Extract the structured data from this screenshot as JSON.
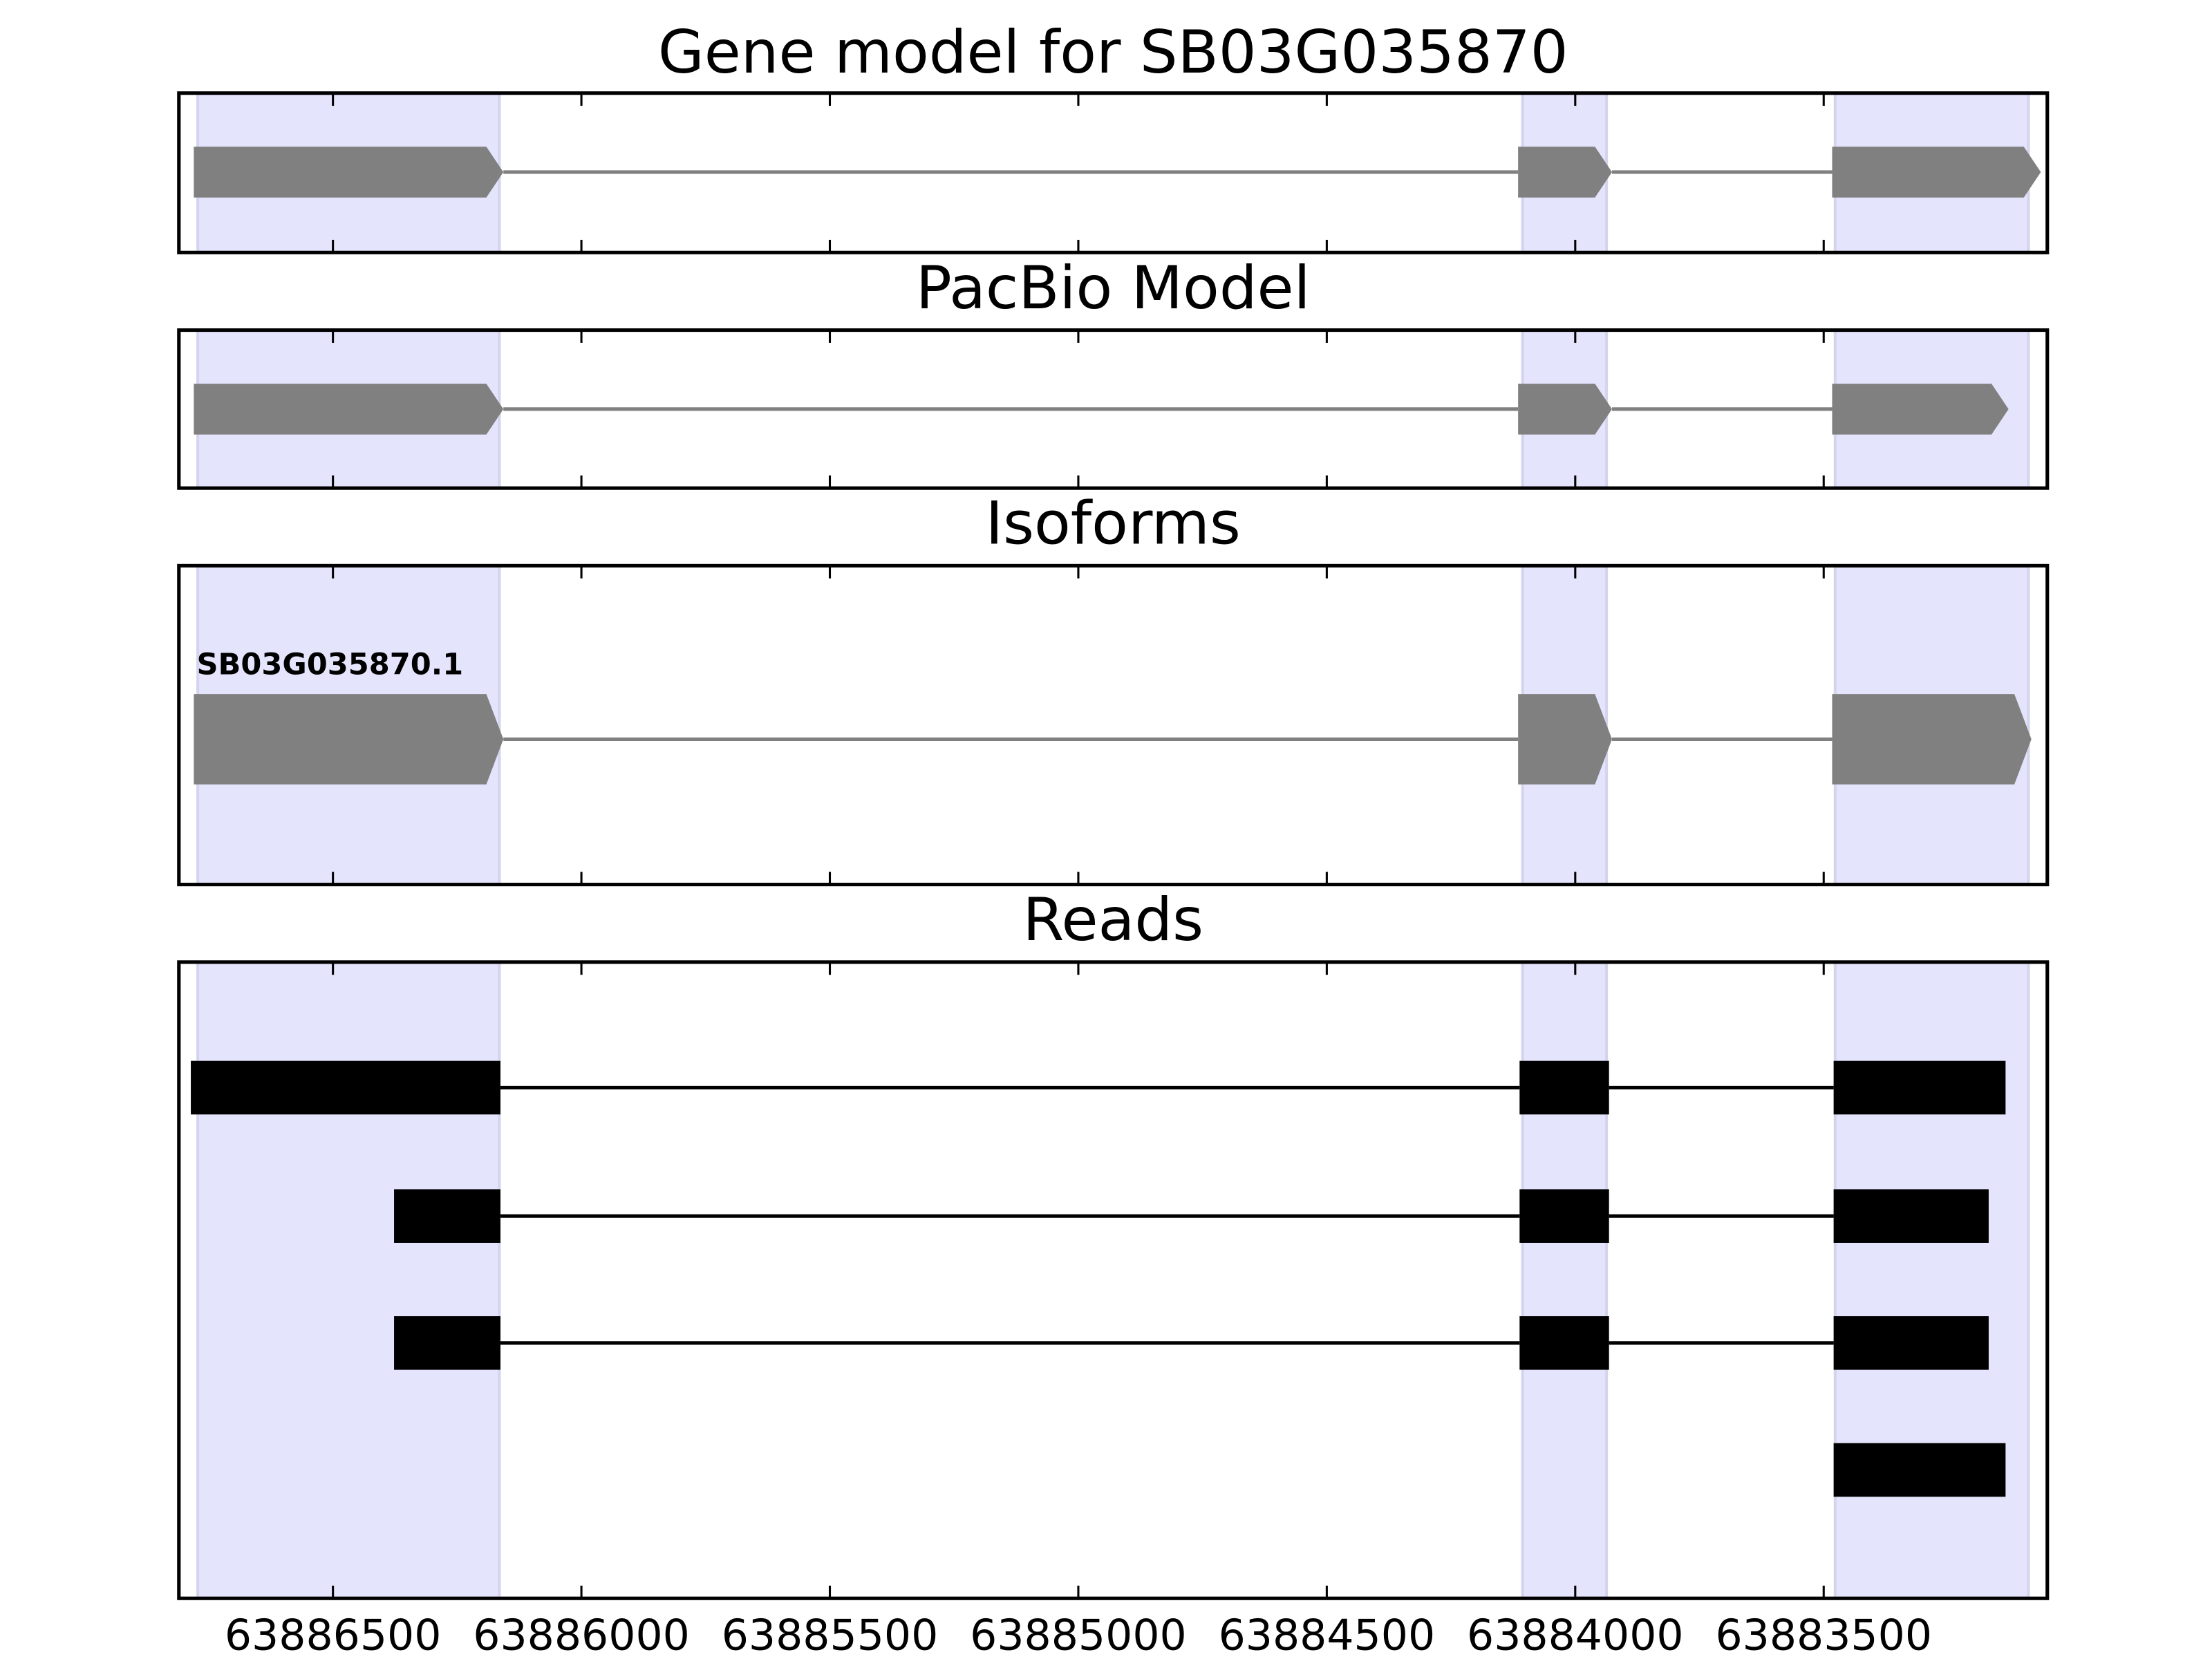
{
  "chart_data": [
    {
      "type": "gene",
      "title": "Gene model for SB03G035870",
      "color": "#808080",
      "highlight_color": "#e4e4fc",
      "xlim": [
        63886810,
        63883050
      ],
      "xticks": [
        63886500,
        63886000,
        63885500,
        63885000,
        63884500,
        63884000,
        63883500
      ],
      "highlights": [
        [
          63886772,
          63886165
        ],
        [
          63884106,
          63883937
        ],
        [
          63883477,
          63883088
        ]
      ],
      "tracks": [
        [
          [
            63886780,
            63886157
          ],
          [
            63884115,
            63883926
          ],
          [
            63883483,
            63883063
          ]
        ]
      ]
    },
    {
      "type": "gene",
      "title": "PacBio Model",
      "color": "#808080",
      "highlight_color": "#e4e4fc",
      "xlim": [
        63886810,
        63883050
      ],
      "xticks": [
        63886500,
        63886000,
        63885500,
        63885000,
        63884500,
        63884000,
        63883500
      ],
      "highlights": [
        [
          63886772,
          63886165
        ],
        [
          63884106,
          63883937
        ],
        [
          63883477,
          63883088
        ]
      ],
      "tracks": [
        [
          [
            63886780,
            63886157
          ],
          [
            63884115,
            63883926
          ],
          [
            63883483,
            63883128
          ]
        ]
      ]
    },
    {
      "type": "gene",
      "title": "Isoforms",
      "color": "#808080",
      "highlight_color": "#e4e4fc",
      "xlim": [
        63886810,
        63883050
      ],
      "xticks": [
        63886500,
        63886000,
        63885500,
        63885000,
        63884500,
        63884000,
        63883500
      ],
      "highlights": [
        [
          63886772,
          63886165
        ],
        [
          63884106,
          63883937
        ],
        [
          63883477,
          63883088
        ]
      ],
      "track_labels": [
        "SB03G035870.1"
      ],
      "tracks": [
        [
          [
            63886780,
            63886157
          ],
          [
            63884115,
            63883926
          ],
          [
            63883483,
            63883082
          ]
        ]
      ]
    },
    {
      "type": "reads",
      "title": "Reads",
      "color": "#000000",
      "highlight_color": "#e4e4fc",
      "xlim": [
        63886810,
        63883050
      ],
      "xticks": [
        63886500,
        63886000,
        63885500,
        63885000,
        63884500,
        63884000,
        63883500
      ],
      "highlights": [
        [
          63886772,
          63886165
        ],
        [
          63884106,
          63883937
        ],
        [
          63883477,
          63883088
        ]
      ],
      "tracks": [
        [
          [
            63886786,
            63886163
          ],
          [
            63884112,
            63883932
          ],
          [
            63883480,
            63883134
          ]
        ],
        [
          [
            63886377,
            63886163
          ],
          [
            63884112,
            63883932
          ],
          [
            63883480,
            63883168
          ]
        ],
        [
          [
            63886377,
            63886163
          ],
          [
            63884112,
            63883932
          ],
          [
            63883480,
            63883168
          ]
        ],
        [
          [
            63883480,
            63883134
          ]
        ]
      ]
    }
  ]
}
